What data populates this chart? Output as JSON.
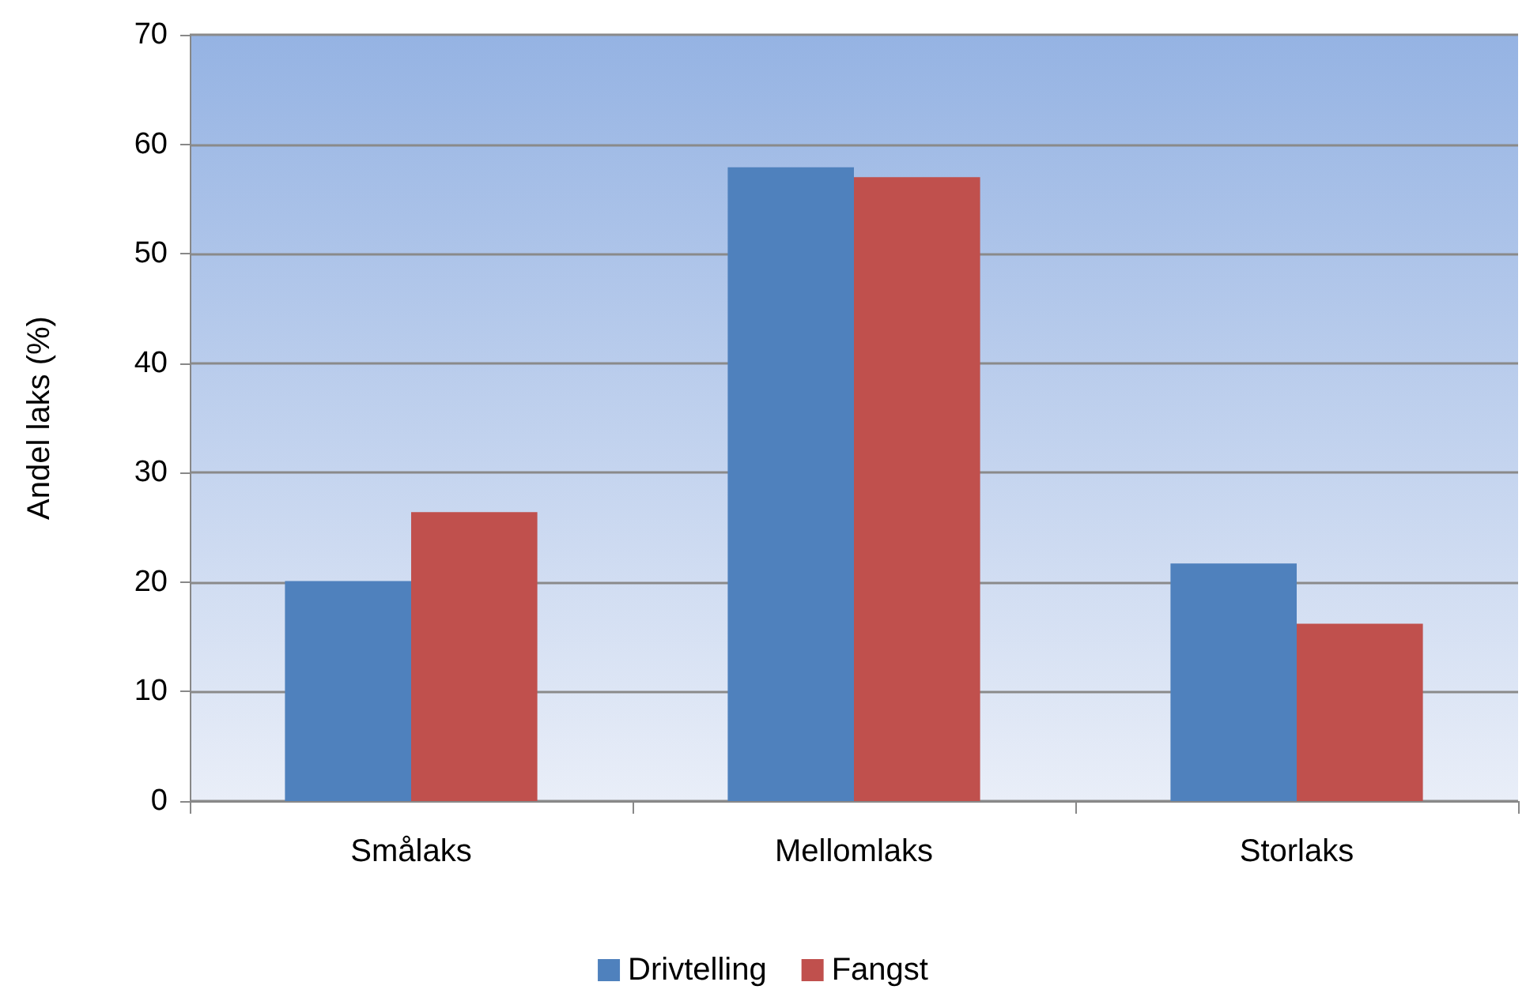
{
  "chart_data": {
    "type": "bar",
    "ylabel": "Andel laks (%)",
    "categories": [
      "Smålaks",
      "Mellomlaks",
      "Storlaks"
    ],
    "series": [
      {
        "name": "Drivtelling",
        "color": "#4f81bd",
        "values": [
          20.1,
          57.9,
          21.7
        ]
      },
      {
        "name": "Fangst",
        "color": "#c0504d",
        "values": [
          26.4,
          57.0,
          16.2
        ]
      }
    ],
    "ylim": [
      0,
      70
    ],
    "yticks": [
      0,
      10,
      20,
      30,
      40,
      50,
      60,
      70
    ],
    "grid": "y",
    "legend": "bottom"
  }
}
